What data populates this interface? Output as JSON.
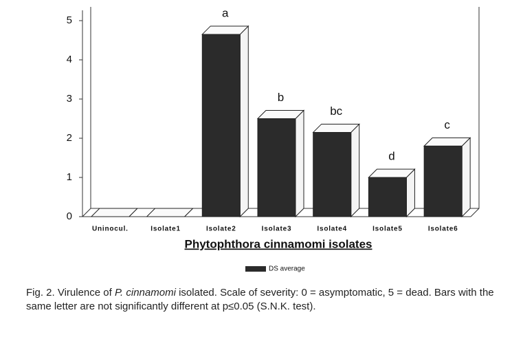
{
  "chart_data": {
    "type": "bar3d",
    "x_label": "Phytophthora cinnamomi isolates",
    "categories": [
      "Uninocul.",
      "Isolate1",
      "Isolate2",
      "Isolate3",
      "Isolate4",
      "Isolate5",
      "Isolate6"
    ],
    "series": [
      {
        "name": "DS average",
        "color": "#2b2b2b",
        "values": [
          0,
          0,
          4.65,
          2.5,
          2.15,
          1.0,
          1.8
        ]
      }
    ],
    "letters": [
      null,
      null,
      "a",
      "b",
      "bc",
      "d",
      "c"
    ],
    "ylim": [
      0,
      5
    ],
    "yticks": [
      0,
      1,
      2,
      3,
      4,
      5
    ]
  },
  "caption": [
    "Fig. 2.  Virulence of ",
    "P. cinnamomi",
    " isolated.  Scale of severity: 0 = asymptomatic, 5 = dead.  Bars with the same letter are not significantly different at p≤0.05 (S.N.K. test)."
  ]
}
